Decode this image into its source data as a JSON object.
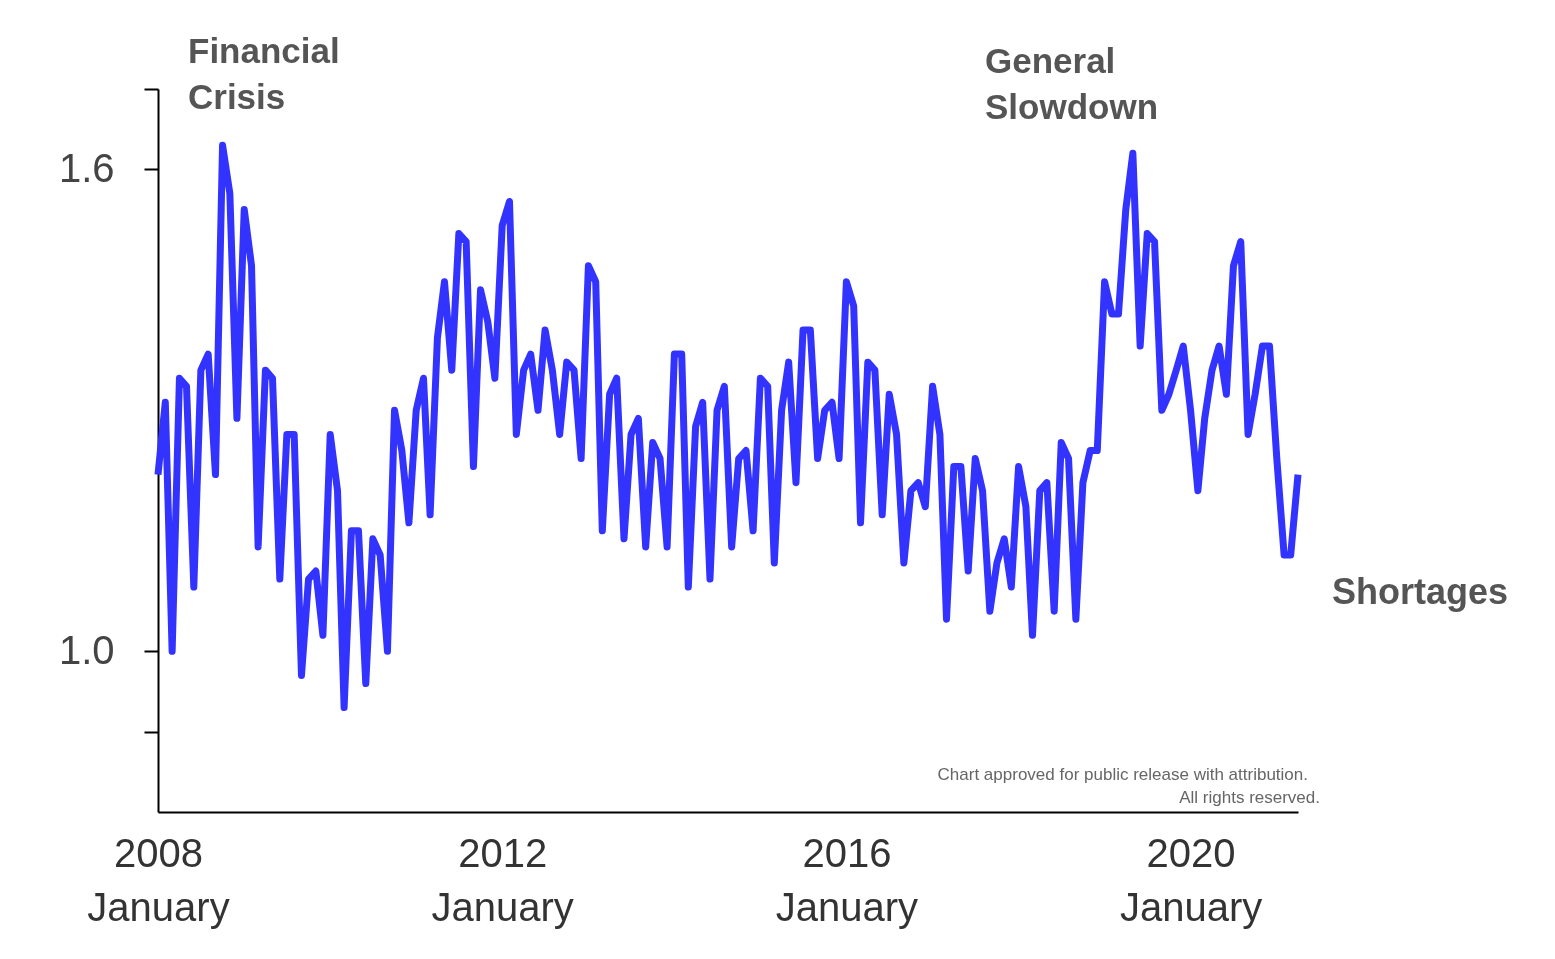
{
  "chart_data": {
    "type": "line",
    "annotations": [
      "Financial Crisis",
      "General Slowdown",
      "Chart approved for public release with attribution.",
      "All rights reserved."
    ],
    "x": [
      "2008-01",
      "2008-02",
      "2008-03",
      "2008-04",
      "2008-05",
      "2008-06",
      "2008-07",
      "2008-08",
      "2008-09",
      "2008-10",
      "2008-11",
      "2008-12",
      "2009-01",
      "2009-02",
      "2009-03",
      "2009-04",
      "2009-05",
      "2009-06",
      "2009-07",
      "2009-08",
      "2009-09",
      "2009-10",
      "2009-11",
      "2009-12",
      "2010-01",
      "2010-02",
      "2010-03",
      "2010-04",
      "2010-05",
      "2010-06",
      "2010-07",
      "2010-08",
      "2010-09",
      "2010-10",
      "2010-11",
      "2010-12",
      "2011-01",
      "2011-02",
      "2011-03",
      "2011-04",
      "2011-05",
      "2011-06",
      "2011-07",
      "2011-08",
      "2011-09",
      "2011-10",
      "2011-11",
      "2011-12",
      "2012-01",
      "2012-02",
      "2012-03",
      "2012-04",
      "2012-05",
      "2012-06",
      "2012-07",
      "2012-08",
      "2012-09",
      "2012-10",
      "2012-11",
      "2012-12",
      "2013-01",
      "2013-02",
      "2013-03",
      "2013-04",
      "2013-05",
      "2013-06",
      "2013-07",
      "2013-08",
      "2013-09",
      "2013-10",
      "2013-11",
      "2013-12",
      "2014-01",
      "2014-02",
      "2014-03",
      "2014-04",
      "2014-05",
      "2014-06",
      "2014-07",
      "2014-08",
      "2014-09",
      "2014-10",
      "2014-11",
      "2014-12",
      "2015-01",
      "2015-02",
      "2015-03",
      "2015-04",
      "2015-05",
      "2015-06",
      "2015-07",
      "2015-08",
      "2015-09",
      "2015-10",
      "2015-11",
      "2015-12",
      "2016-01",
      "2016-02",
      "2016-03",
      "2016-04",
      "2016-05",
      "2016-06",
      "2016-07",
      "2016-08",
      "2016-09",
      "2016-10",
      "2016-11",
      "2016-12",
      "2017-01",
      "2017-02",
      "2017-03",
      "2017-04",
      "2017-05",
      "2017-06",
      "2017-07",
      "2017-08",
      "2017-09",
      "2017-10",
      "2017-11",
      "2017-12",
      "2018-01",
      "2018-02",
      "2018-03",
      "2018-04",
      "2018-05",
      "2018-06",
      "2018-07",
      "2018-08",
      "2018-09",
      "2018-10",
      "2018-11",
      "2018-12",
      "2019-01",
      "2019-02",
      "2019-03",
      "2019-04",
      "2019-05",
      "2019-06",
      "2019-07",
      "2019-08",
      "2019-09",
      "2019-10",
      "2019-11",
      "2019-12",
      "2020-01",
      "2020-02",
      "2020-03",
      "2020-04",
      "2020-05",
      "2020-06",
      "2020-07",
      "2020-08",
      "2020-09",
      "2020-10",
      "2020-11",
      "2020-12",
      "2021-01",
      "2021-02",
      "2021-03",
      "2021-04"
    ],
    "series": [
      {
        "name": "Shortages",
        "color": "#3333ff",
        "values": [
          1.22,
          1.31,
          1.0,
          1.34,
          1.33,
          1.08,
          1.35,
          1.37,
          1.22,
          1.63,
          1.57,
          1.29,
          1.55,
          1.48,
          1.13,
          1.35,
          1.34,
          1.09,
          1.27,
          1.27,
          0.97,
          1.09,
          1.1,
          1.02,
          1.27,
          1.2,
          0.93,
          1.15,
          1.15,
          0.96,
          1.14,
          1.12,
          1.0,
          1.3,
          1.25,
          1.16,
          1.3,
          1.34,
          1.17,
          1.39,
          1.46,
          1.35,
          1.52,
          1.51,
          1.23,
          1.45,
          1.41,
          1.34,
          1.53,
          1.56,
          1.27,
          1.35,
          1.37,
          1.3,
          1.4,
          1.35,
          1.27,
          1.36,
          1.35,
          1.24,
          1.48,
          1.46,
          1.15,
          1.32,
          1.34,
          1.14,
          1.27,
          1.29,
          1.13,
          1.26,
          1.24,
          1.13,
          1.37,
          1.37,
          1.08,
          1.28,
          1.31,
          1.09,
          1.3,
          1.33,
          1.13,
          1.24,
          1.25,
          1.15,
          1.34,
          1.33,
          1.11,
          1.3,
          1.36,
          1.21,
          1.4,
          1.4,
          1.24,
          1.3,
          1.31,
          1.24,
          1.46,
          1.43,
          1.16,
          1.36,
          1.35,
          1.17,
          1.32,
          1.27,
          1.11,
          1.2,
          1.21,
          1.18,
          1.33,
          1.27,
          1.04,
          1.23,
          1.23,
          1.1,
          1.24,
          1.2,
          1.05,
          1.11,
          1.14,
          1.08,
          1.23,
          1.18,
          1.02,
          1.2,
          1.21,
          1.05,
          1.26,
          1.24,
          1.04,
          1.21,
          1.25,
          1.25,
          1.46,
          1.42,
          1.42,
          1.55,
          1.62,
          1.38,
          1.52,
          1.51,
          1.3,
          1.32,
          1.35,
          1.38,
          1.3,
          1.2,
          1.29,
          1.35,
          1.38,
          1.32,
          1.48,
          1.51,
          1.27,
          1.32,
          1.38,
          1.38,
          1.24,
          1.12,
          1.12,
          1.22
        ]
      }
    ],
    "xlim": [
      "2008-01",
      "2021-04"
    ],
    "xticks": [
      {
        "value": "2008-01",
        "label": "2008 January"
      },
      {
        "value": "2012-01",
        "label": "2012 January"
      },
      {
        "value": "2016-01",
        "label": "2016 January"
      },
      {
        "value": "2020-01",
        "label": "2020 January"
      }
    ],
    "ylim": [
      0.8,
      1.7
    ],
    "yticks": [
      {
        "value": 1.7,
        "label": null
      },
      1.6,
      {
        "value": 1.0,
        "label": "1.0"
      },
      {
        "value": 0.9,
        "label": null
      }
    ]
  }
}
